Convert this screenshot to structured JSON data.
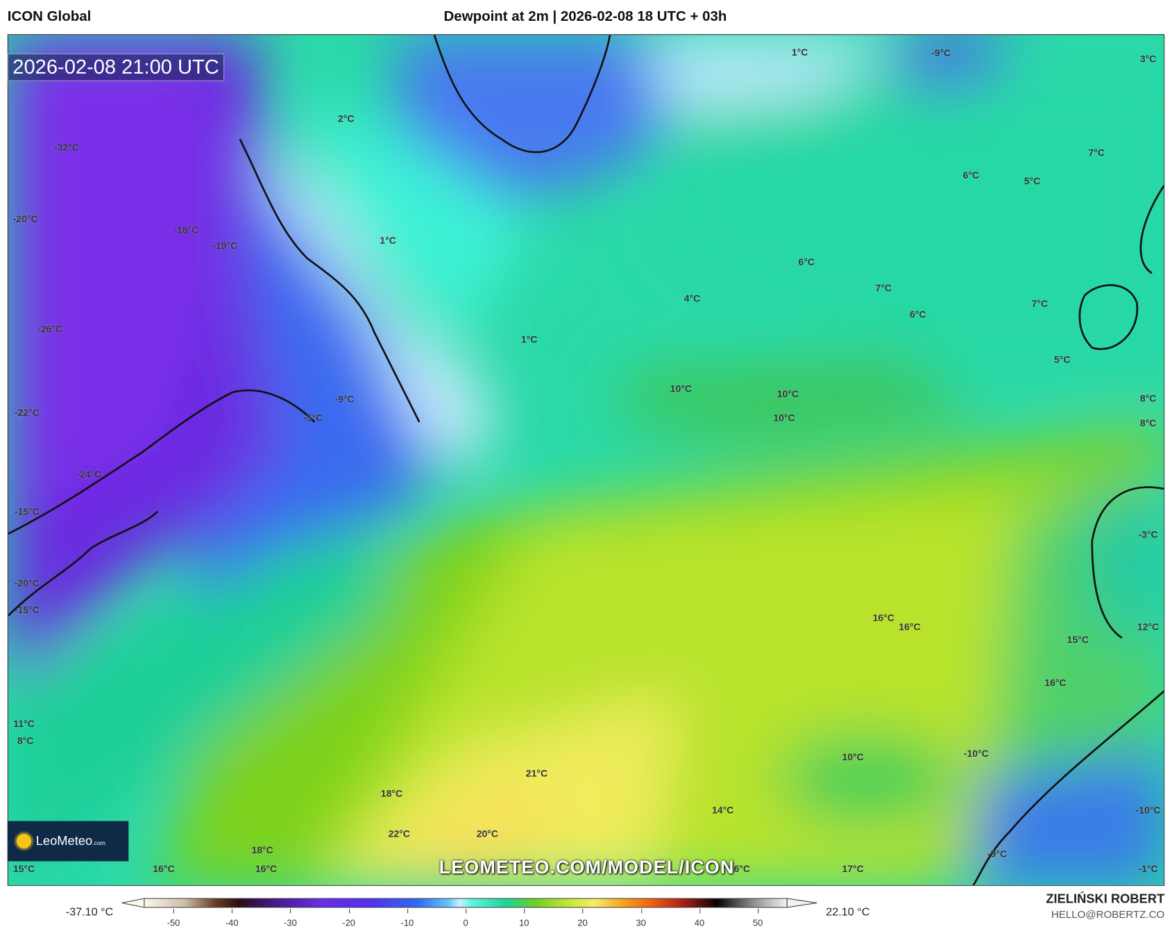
{
  "header": {
    "model": "ICON Global",
    "title": "Dewpoint at 2m | 2026-02-08 18 UTC + 03h"
  },
  "map": {
    "valid_time": "2026-02-08 21:00 UTC",
    "watermark": "LEOMETEO.COM/MODEL/ICON",
    "logo_text": "LeoMeteo",
    "logo_suffix": ".com",
    "labels": [
      "1°C",
      "-9°C",
      "3°C",
      "2°C",
      "-32°C",
      "7°C",
      "6°C",
      "5°C",
      "-20°C",
      "-18°C",
      "-19°C",
      "1°C",
      "6°C",
      "7°C",
      "4°C",
      "7°C",
      "6°C",
      "-26°C",
      "1°C",
      "5°C",
      "10°C",
      "10°C",
      "-9°C",
      "8°C",
      "-22°C",
      "10°C",
      "-5°C",
      "8°C",
      "-24°C",
      "-15°C",
      "-3°C",
      "-20°C",
      "-15°C",
      "16°C",
      "16°C",
      "12°C",
      "15°C",
      "16°C",
      "11°C",
      "8°C",
      "-10°C",
      "10°C",
      "21°C",
      "18°C",
      "14°C",
      "-10°C",
      "22°C",
      "20°C",
      "18°C",
      "-9°C",
      "15°C",
      "16°C",
      "16°C",
      "16°C",
      "17°C",
      "-1°C"
    ]
  },
  "colorbar": {
    "min_label": "-37.10 °C",
    "max_label": "22.10 °C",
    "ticks": [
      "-50",
      "-40",
      "-30",
      "-20",
      "-10",
      "0",
      "10",
      "20",
      "30",
      "40",
      "50"
    ],
    "range": [
      -55,
      55
    ],
    "stops": [
      {
        "v": -55,
        "c": "#fbf8ee"
      },
      {
        "v": -48,
        "c": "#cdbba6"
      },
      {
        "v": -43,
        "c": "#6e3f2a"
      },
      {
        "v": -39,
        "c": "#2a0f0f"
      },
      {
        "v": -34,
        "c": "#3c1678"
      },
      {
        "v": -25,
        "c": "#6a2de6"
      },
      {
        "v": -16,
        "c": "#5130f0"
      },
      {
        "v": -8,
        "c": "#2f6ef5"
      },
      {
        "v": -3,
        "c": "#62c4fb"
      },
      {
        "v": -1,
        "c": "#cdeefd"
      },
      {
        "v": 1,
        "c": "#5ef4dc"
      },
      {
        "v": 7,
        "c": "#1ed39a"
      },
      {
        "v": 12,
        "c": "#6ed020"
      },
      {
        "v": 18,
        "c": "#c8e838"
      },
      {
        "v": 22,
        "c": "#f4ee6a"
      },
      {
        "v": 27,
        "c": "#f6a31a"
      },
      {
        "v": 32,
        "c": "#ef5d10"
      },
      {
        "v": 37,
        "c": "#b0201a"
      },
      {
        "v": 43,
        "c": "#080202"
      },
      {
        "v": 49,
        "c": "#8a8a8a"
      },
      {
        "v": 55,
        "c": "#f2f2f2"
      }
    ]
  },
  "footer": {
    "author": "ZIELIŃSKI ROBERT",
    "email": "HELLO@ROBERTZ.CO"
  }
}
